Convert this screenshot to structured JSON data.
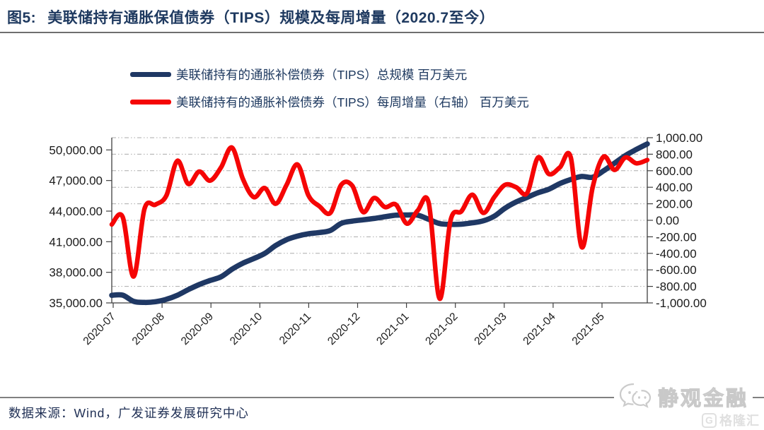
{
  "figure": {
    "number_label": "图5:",
    "title": "美联储持有通胀保值债券（TIPS）规模及每周增量（2020.7至今）"
  },
  "legend": {
    "items": [
      {
        "label": "美联储持有的通胀补偿债券（TIPS）总规模 百万美元",
        "color": "#1f3864"
      },
      {
        "label": "美联储持有的通胀补偿债券（TIPS）每周增量（右轴） 百万美元",
        "color": "#f50505"
      }
    ]
  },
  "footer": {
    "source": "数据来源：Wind，广发证券发展研究中心"
  },
  "watermarks": {
    "wechat_account": "静观金融",
    "platform": "格隆汇",
    "platform_icon": "G"
  },
  "chart_data": {
    "type": "line",
    "title": "美联储持有通胀保值债券（TIPS）规模及每周增量（2020.7至今）",
    "frequency": "weekly",
    "grid": "horizontal, dashed, at right-axis ticks",
    "legend_position": "top-left above plot",
    "x_axis": {
      "tick_labels": [
        "2020-07",
        "2020-08",
        "2020-09",
        "2020-10",
        "2020-11",
        "2020-12",
        "2021-01",
        "2021-02",
        "2021-03",
        "2021-04",
        "2021-05"
      ],
      "label_rotation_deg": -45
    },
    "left_axis": {
      "min": 35000,
      "max": 50000,
      "tick_step": 3000,
      "tick_values": [
        50000,
        47000,
        44000,
        41000,
        38000,
        35000
      ],
      "tick_labels": [
        "50,000.00",
        "47,000.00",
        "44,000.00",
        "41,000.00",
        "38,000.00",
        "35,000.00"
      ]
    },
    "right_axis": {
      "min": -1000,
      "max": 1000,
      "tick_step": 200,
      "tick_values": [
        1000,
        800,
        600,
        400,
        200,
        0,
        -200,
        -400,
        -600,
        -800,
        -1000
      ],
      "tick_labels": [
        "1,000.00",
        "800.00",
        "600.00",
        "400.00",
        "200.00",
        "0.00",
        "-200.00",
        "-400.00",
        "-600.00",
        "-800.00",
        "-1,000.00"
      ]
    },
    "series": [
      {
        "name": "美联储持有的通胀补偿债券（TIPS）总规模 百万美元",
        "axis": "left",
        "color": "#1f3864",
        "values": [
          35750,
          35760,
          35150,
          35050,
          35120,
          35350,
          35750,
          36300,
          36800,
          37200,
          37560,
          38300,
          38900,
          39350,
          39850,
          40630,
          41200,
          41550,
          41780,
          41900,
          42100,
          42800,
          43020,
          43150,
          43280,
          43450,
          43600,
          43620,
          43600,
          43200,
          42780,
          42700,
          42720,
          42850,
          43050,
          43500,
          44300,
          44900,
          45350,
          45800,
          46150,
          46700,
          47100,
          47400,
          47320,
          47950,
          48700,
          49450,
          50050,
          50590
        ]
      },
      {
        "name": "美联储持有的通胀补偿债券（TIPS）每周增量（右轴） 百万美元",
        "axis": "right",
        "color": "#f50505",
        "values": [
          -50,
          40,
          -680,
          140,
          190,
          300,
          720,
          440,
          590,
          480,
          640,
          880,
          500,
          280,
          390,
          200,
          430,
          675,
          300,
          170,
          90,
          430,
          420,
          100,
          270,
          160,
          190,
          -40,
          120,
          210,
          -950,
          0,
          110,
          310,
          90,
          280,
          430,
          400,
          330,
          760,
          560,
          640,
          760,
          -325,
          400,
          770,
          610,
          760,
          690,
          730
        ]
      }
    ]
  }
}
